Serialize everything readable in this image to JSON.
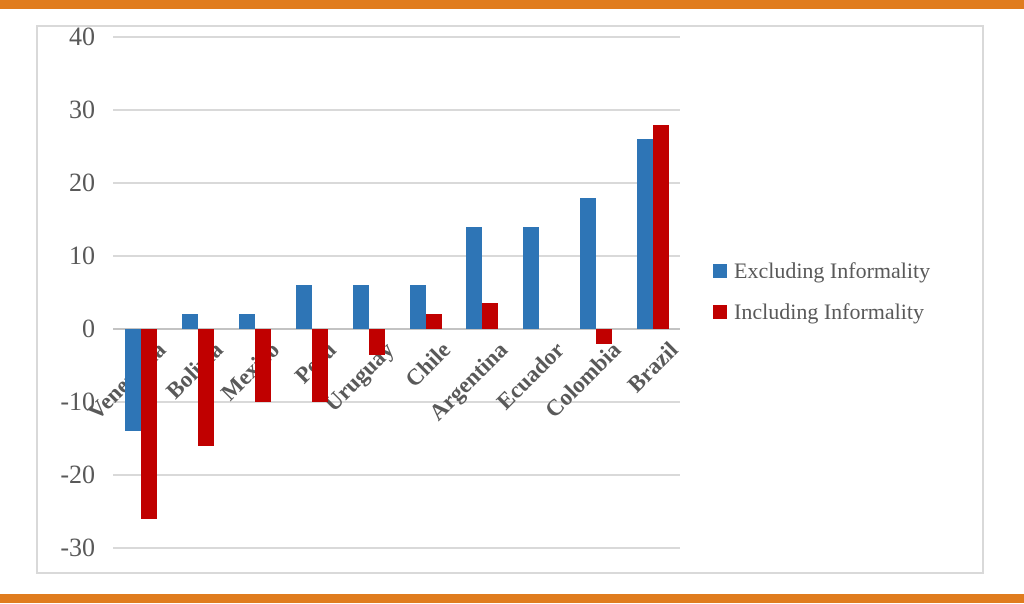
{
  "page": {
    "background": "#FFFFFF",
    "accent_border_color": "#E07C1E",
    "chart_border_color": "#D9D9D9"
  },
  "chart_data": {
    "type": "bar",
    "title": "",
    "categories": [
      "Venezuela",
      "Bolivia",
      "Mexico",
      "Peru",
      "Uruguay",
      "Chile",
      "Argentina",
      "Ecuador",
      "Colombia",
      "Brazil"
    ],
    "series": [
      {
        "name": "Excluding Informality",
        "color": "#2E75B6",
        "values": [
          -14,
          2,
          2,
          6,
          6,
          6,
          14,
          14,
          18,
          26
        ]
      },
      {
        "name": "Including Informality",
        "color": "#C00000",
        "values": [
          -26,
          -16,
          -10,
          -10,
          -3.5,
          2,
          3.5,
          0,
          -2,
          28
        ]
      }
    ],
    "y_ticks": [
      40,
      30,
      20,
      10,
      0,
      -10,
      -20,
      -30
    ],
    "ylim": [
      -33,
      42
    ],
    "grid": true,
    "legend_position": "right",
    "text_color": "#595959",
    "gridline_color": "#D9D9D9",
    "axis_line_color": "#C3C3C3"
  }
}
